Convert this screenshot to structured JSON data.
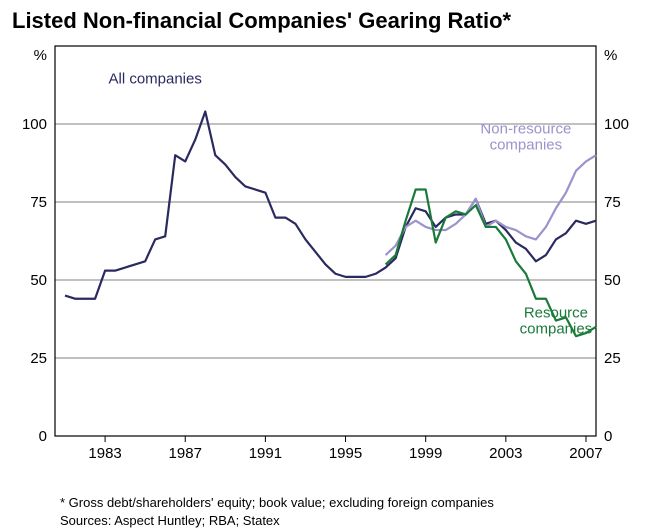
{
  "title": "Listed Non-financial Companies' Gearing Ratio*",
  "footnote": "*  Gross debt/shareholders' equity; book value; excluding foreign companies",
  "sources": "Sources: Aspect Huntley; RBA; Statex",
  "chart": {
    "type": "line",
    "ylabel_left": "%",
    "ylabel_right": "%",
    "ylim": [
      0,
      125
    ],
    "yticks": [
      0,
      25,
      50,
      75,
      100
    ],
    "xlim": [
      1980.5,
      2007.5
    ],
    "xticks": [
      1983,
      1987,
      1991,
      1995,
      1999,
      2003,
      2007
    ],
    "background_color": "#ffffff",
    "grid_color": "#808080",
    "axis_color": "#000000",
    "title_fontsize": 22,
    "axis_fontsize": 15,
    "line_width": 2.2,
    "series": [
      {
        "name": "All companies",
        "color": "#2a2a60",
        "label_xy": [
          1985.5,
          113
        ],
        "data": [
          [
            1981,
            45
          ],
          [
            1981.5,
            44
          ],
          [
            1982,
            44
          ],
          [
            1982.5,
            44
          ],
          [
            1983,
            53
          ],
          [
            1983.5,
            53
          ],
          [
            1984,
            54
          ],
          [
            1984.5,
            55
          ],
          [
            1985,
            56
          ],
          [
            1985.5,
            63
          ],
          [
            1986,
            64
          ],
          [
            1986.5,
            90
          ],
          [
            1987,
            88
          ],
          [
            1987.5,
            95
          ],
          [
            1988,
            104
          ],
          [
            1988.5,
            90
          ],
          [
            1989,
            87
          ],
          [
            1989.5,
            83
          ],
          [
            1990,
            80
          ],
          [
            1990.5,
            79
          ],
          [
            1991,
            78
          ],
          [
            1991.5,
            70
          ],
          [
            1992,
            70
          ],
          [
            1992.5,
            68
          ],
          [
            1993,
            63
          ],
          [
            1993.5,
            59
          ],
          [
            1994,
            55
          ],
          [
            1994.5,
            52
          ],
          [
            1995,
            51
          ],
          [
            1995.5,
            51
          ],
          [
            1996,
            51
          ],
          [
            1996.5,
            52
          ],
          [
            1997,
            54
          ],
          [
            1997.5,
            57
          ],
          [
            1998,
            67
          ],
          [
            1998.5,
            73
          ],
          [
            1999,
            72
          ],
          [
            1999.5,
            67
          ],
          [
            2000,
            70
          ],
          [
            2000.5,
            71
          ],
          [
            2001,
            71
          ],
          [
            2001.5,
            76
          ],
          [
            2002,
            68
          ],
          [
            2002.5,
            69
          ],
          [
            2003,
            66
          ],
          [
            2003.5,
            62
          ],
          [
            2004,
            60
          ],
          [
            2004.5,
            56
          ],
          [
            2005,
            58
          ],
          [
            2005.5,
            63
          ],
          [
            2006,
            65
          ],
          [
            2006.5,
            69
          ],
          [
            2007,
            68
          ],
          [
            2007.5,
            69
          ]
        ]
      },
      {
        "name": "Non-resource companies",
        "color": "#9a93cc",
        "label_xy": [
          2004,
          97
        ],
        "label_lines": [
          "Non-resource",
          "companies"
        ],
        "data": [
          [
            1997,
            58
          ],
          [
            1997.5,
            61
          ],
          [
            1998,
            67
          ],
          [
            1998.5,
            69
          ],
          [
            1999,
            67
          ],
          [
            1999.5,
            66
          ],
          [
            2000,
            66
          ],
          [
            2000.5,
            68
          ],
          [
            2001,
            71
          ],
          [
            2001.5,
            76
          ],
          [
            2002,
            67
          ],
          [
            2002.5,
            69
          ],
          [
            2003,
            67
          ],
          [
            2003.5,
            66
          ],
          [
            2004,
            64
          ],
          [
            2004.5,
            63
          ],
          [
            2005,
            67
          ],
          [
            2005.5,
            73
          ],
          [
            2006,
            78
          ],
          [
            2006.5,
            85
          ],
          [
            2007,
            88
          ],
          [
            2007.5,
            90
          ]
        ]
      },
      {
        "name": "Resource companies",
        "color": "#1a7a3a",
        "label_xy": [
          2005.5,
          38
        ],
        "label_lines": [
          "Resource",
          "companies"
        ],
        "data": [
          [
            1997,
            55
          ],
          [
            1997.5,
            58
          ],
          [
            1998,
            69
          ],
          [
            1998.5,
            79
          ],
          [
            1999,
            79
          ],
          [
            1999.5,
            62
          ],
          [
            2000,
            70
          ],
          [
            2000.5,
            72
          ],
          [
            2001,
            71
          ],
          [
            2001.5,
            74
          ],
          [
            2002,
            67
          ],
          [
            2002.5,
            67
          ],
          [
            2003,
            63
          ],
          [
            2003.5,
            56
          ],
          [
            2004,
            52
          ],
          [
            2004.5,
            44
          ],
          [
            2005,
            44
          ],
          [
            2005.5,
            37
          ],
          [
            2006,
            38
          ],
          [
            2006.5,
            32
          ],
          [
            2007,
            33
          ],
          [
            2007.5,
            35
          ]
        ]
      }
    ]
  }
}
